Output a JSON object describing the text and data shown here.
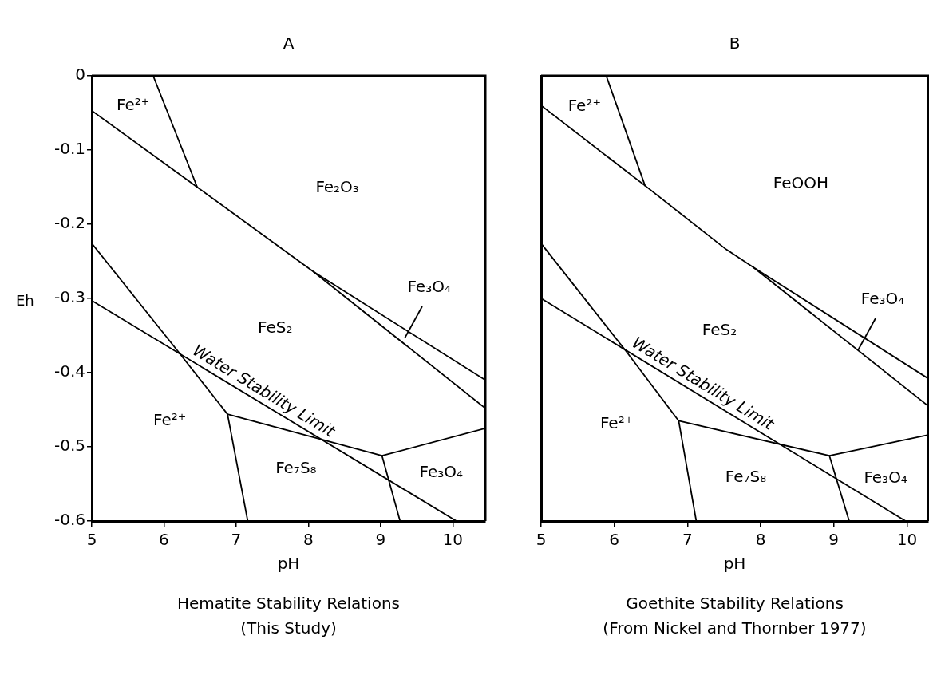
{
  "chart_data": [
    {
      "type": "line",
      "title": "A",
      "xlabel": "pH",
      "ylabel": "Eh",
      "xlim": [
        5,
        10.45
      ],
      "xticks": [
        5,
        6,
        7,
        8,
        9,
        10
      ],
      "ylim": [
        -0.6,
        0
      ],
      "yticks": [
        0,
        -0.1,
        -0.2,
        -0.3,
        -0.4,
        -0.5,
        -0.6
      ],
      "grid": false,
      "legend": false,
      "marker": "none",
      "line_style": "solid",
      "series": [
        {
          "color": "#000000",
          "x": [
            5.85,
            6.46
          ],
          "values": [
            0,
            -0.15
          ]
        },
        {
          "color": "#000000",
          "x": [
            5,
            6.46,
            8.07,
            10.45
          ],
          "values": [
            -0.047,
            -0.15,
            -0.264,
            -0.41
          ]
        },
        {
          "color": "#000000",
          "x": [
            8.07,
            10.45
          ],
          "values": [
            -0.264,
            -0.448
          ]
        },
        {
          "color": "#000000",
          "x": [
            5,
            6.2,
            6.88,
            9.02,
            10.45
          ],
          "values": [
            -0.226,
            -0.372,
            -0.456,
            -0.512,
            -0.475
          ]
        },
        {
          "color": "#000000",
          "x": [
            6.88,
            7.16
          ],
          "values": [
            -0.456,
            -0.6
          ]
        },
        {
          "color": "#000000",
          "x": [
            9.02,
            9.27
          ],
          "values": [
            -0.512,
            -0.6
          ]
        },
        {
          "color": "#000000",
          "x": [
            5,
            10.05
          ],
          "values": [
            -0.303,
            -0.6
          ]
        }
      ],
      "annotations": [
        "Fe²⁺",
        "Fe₂O₃",
        "FeS₂",
        {
          "text": "Fe₃O₄",
          "x": 9.33,
          "y": -0.354
        },
        {
          "text": "Water Stability Limit",
          "x": 7.3,
          "y": -0.438
        },
        "Fe²⁺",
        "Fe₇S₈",
        "Fe₃O₄",
        "Hematite Stability Relations",
        "(This Study)"
      ]
    },
    {
      "type": "line",
      "title": "B",
      "xlabel": "pH",
      "xlim": [
        5,
        10.29
      ],
      "xticks": [
        5,
        6,
        7,
        8,
        9,
        10
      ],
      "ylim": [
        -0.6,
        0
      ],
      "yticks": [
        0,
        -0.1,
        -0.2,
        -0.3,
        -0.4,
        -0.5,
        -0.6
      ],
      "tick_labels": "x",
      "grid": false,
      "legend": false,
      "marker": "none",
      "line_style": "solid",
      "series": [
        {
          "color": "#000000",
          "x": [
            5.89,
            6.42
          ],
          "values": [
            0,
            -0.148
          ]
        },
        {
          "color": "#000000",
          "x": [
            5,
            6.42,
            7.53,
            7.9,
            10.29
          ],
          "values": [
            -0.04,
            -0.148,
            -0.234,
            -0.258,
            -0.408
          ]
        },
        {
          "color": "#000000",
          "x": [
            7.9,
            10.29
          ],
          "values": [
            -0.258,
            -0.445
          ]
        },
        {
          "color": "#000000",
          "x": [
            5,
            6.16,
            6.88,
            8.94,
            10.29
          ],
          "values": [
            -0.226,
            -0.371,
            -0.465,
            -0.512,
            -0.484
          ]
        },
        {
          "color": "#000000",
          "x": [
            6.88,
            7.12
          ],
          "values": [
            -0.465,
            -0.6
          ]
        },
        {
          "color": "#000000",
          "x": [
            8.94,
            9.21
          ],
          "values": [
            -0.512,
            -0.6
          ]
        },
        {
          "color": "#000000",
          "x": [
            5,
            9.98
          ],
          "values": [
            -0.3,
            -0.6
          ]
        }
      ],
      "annotations": [
        "Fe²⁺",
        "FeOOH",
        "FeS₂",
        {
          "text": "Fe₃O₄",
          "x": 9.33,
          "y": -0.37
        },
        {
          "text": "Water Stability Limit",
          "x": 7.13,
          "y": -0.428
        },
        "Fe²⁺",
        "Fe₇S₈",
        "Fe₃O₄",
        "Goethite Stability Relations",
        "(From Nickel and Thornber 1977)"
      ]
    }
  ]
}
